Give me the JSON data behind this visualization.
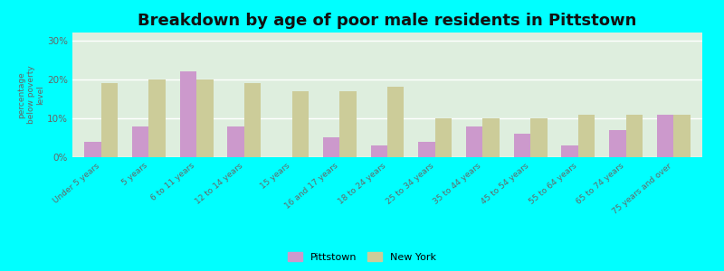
{
  "title": "Breakdown by age of poor male residents in Pittstown",
  "ylabel": "percentage\nbelow poverty\nlevel",
  "categories": [
    "Under 5 years",
    "5 years",
    "6 to 11 years",
    "12 to 14 years",
    "15 years",
    "16 and 17 years",
    "18 to 24 years",
    "25 to 34 years",
    "35 to 44 years",
    "45 to 54 years",
    "55 to 64 years",
    "65 to 74 years",
    "75 years and over"
  ],
  "pittstown": [
    4,
    8,
    22,
    8,
    0,
    5,
    3,
    4,
    8,
    6,
    3,
    7,
    11
  ],
  "newyork": [
    19,
    20,
    20,
    19,
    17,
    17,
    18,
    10,
    10,
    10,
    11,
    11,
    11
  ],
  "pittstown_color": "#cc99cc",
  "newyork_color": "#cccc99",
  "background_color": "#deeede",
  "outer_bg": "#00ffff",
  "ylim": [
    0,
    32
  ],
  "yticks": [
    0,
    10,
    20,
    30
  ],
  "ytick_labels": [
    "0%",
    "10%",
    "20%",
    "30%"
  ],
  "title_fontsize": 13,
  "bar_width": 0.35,
  "legend_pittstown": "Pittstown",
  "legend_newyork": "New York"
}
